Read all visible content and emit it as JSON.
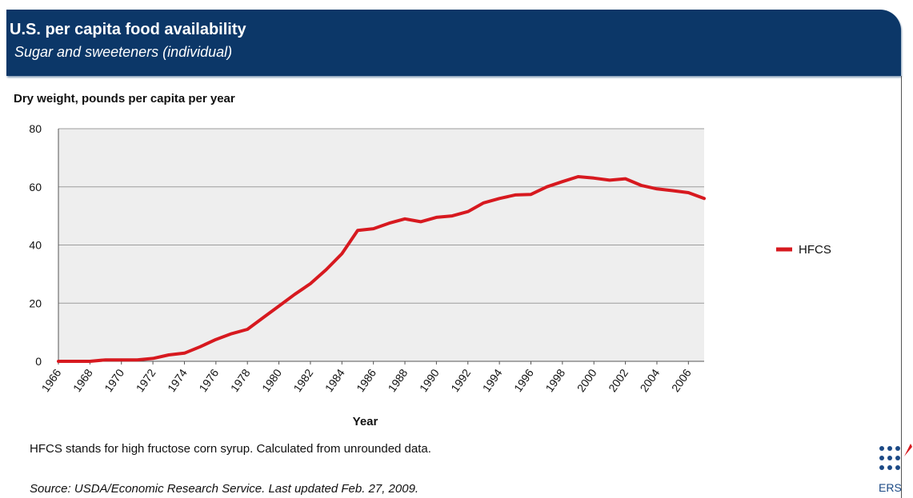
{
  "header": {
    "title": "U.S. per capita food availability",
    "subtitle": "Sugar and sweeteners (individual)"
  },
  "units_label": "Dry weight, pounds per capita per year",
  "footnote": "HFCS stands for high fructose corn syrup. Calculated from unrounded data.",
  "source": "Source: USDA/Economic Research Service. Last updated Feb. 27, 2009.",
  "logo": {
    "text": "ERS",
    "icon": "ers-dots-logo"
  },
  "colors": {
    "banner": "#0c3768",
    "series_line": "#d7191f",
    "plot_background": "#eeeeee",
    "gridline": "#9c9c9c"
  },
  "chart_data": {
    "type": "line",
    "title": "U.S. per capita food availability",
    "subtitle": "Sugar and sweeteners (individual)",
    "ylabel": "Dry weight, pounds per capita per year",
    "xlabel": "Year",
    "xlim": [
      1966,
      2007
    ],
    "ylim": [
      0,
      80
    ],
    "yticks": [
      0,
      20,
      40,
      60,
      80
    ],
    "xticks": [
      "1966",
      "1968",
      "1970",
      "1972",
      "1974",
      "1976",
      "1978",
      "1980",
      "1982",
      "1984",
      "1986",
      "1988",
      "1990",
      "1992",
      "1994",
      "1996",
      "1998",
      "2000",
      "2002",
      "2004",
      "2006"
    ],
    "grid": true,
    "legend": "right",
    "x": [
      1966,
      1967,
      1968,
      1969,
      1970,
      1971,
      1972,
      1973,
      1974,
      1975,
      1976,
      1977,
      1978,
      1979,
      1980,
      1981,
      1982,
      1983,
      1984,
      1985,
      1986,
      1987,
      1988,
      1989,
      1990,
      1991,
      1992,
      1993,
      1994,
      1995,
      1996,
      1997,
      1998,
      1999,
      2000,
      2001,
      2002,
      2003,
      2004,
      2005,
      2006,
      2007
    ],
    "series": [
      {
        "name": "HFCS",
        "color": "#d7191f",
        "values": [
          0.0,
          0.0,
          0.0,
          0.5,
          0.5,
          0.5,
          1.0,
          2.2,
          2.8,
          5.0,
          7.5,
          9.5,
          11.0,
          15.0,
          19.0,
          23.0,
          26.7,
          31.5,
          37.0,
          45.0,
          45.6,
          47.5,
          49.0,
          48.0,
          49.5,
          50.0,
          51.5,
          54.5,
          56.0,
          57.2,
          57.4,
          60.0,
          61.8,
          63.5,
          63.0,
          62.3,
          62.8,
          60.5,
          59.3,
          58.7,
          58.0,
          56.0
        ]
      }
    ]
  }
}
